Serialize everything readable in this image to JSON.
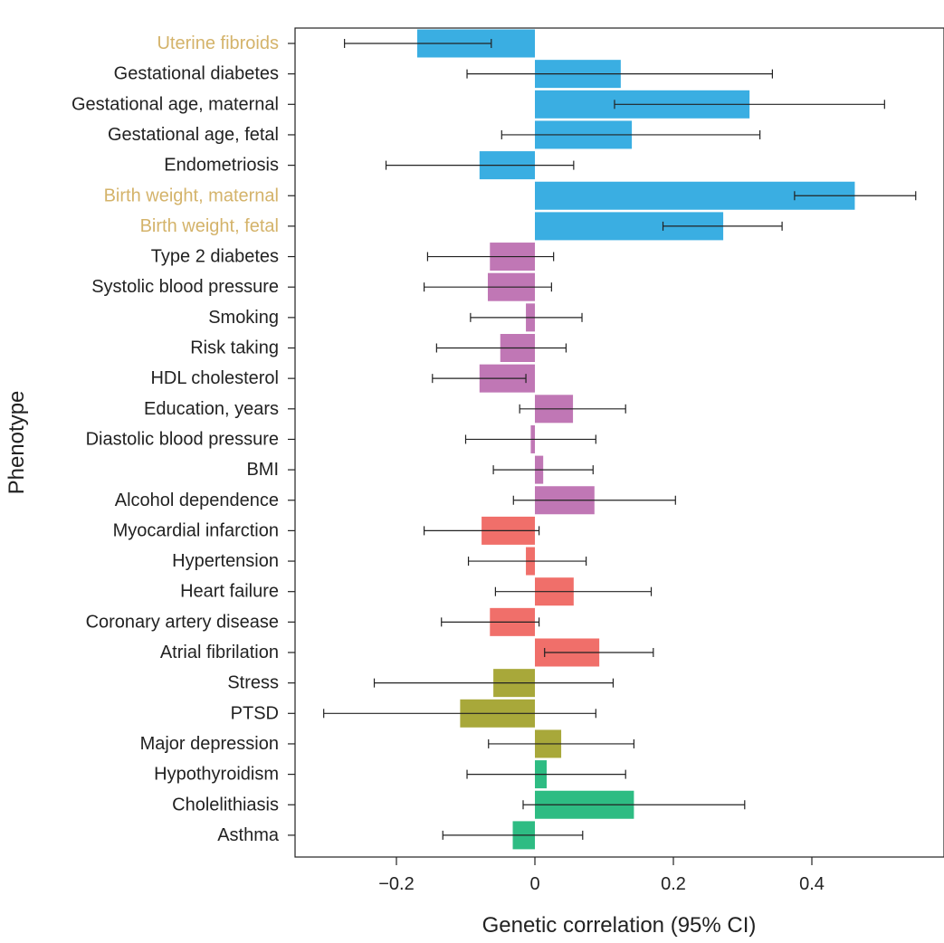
{
  "chart_data": {
    "type": "bar",
    "orientation": "horizontal",
    "xlabel": "Genetic correlation (95% CI)",
    "ylabel": "Phenotype",
    "xlim": [
      -0.35,
      0.58
    ],
    "x_ticks": [
      -0.2,
      0,
      0.2,
      0.4
    ],
    "x_tick_labels": [
      "−0.2",
      "0",
      "0.2",
      "0.4"
    ],
    "grid": false,
    "legend": "none",
    "highlight_label_color": "#d4b36a",
    "default_label_color": "#222222",
    "group_colors": {
      "reproductive": "#3aaee2",
      "metabolic_behavioral": "#c077b5",
      "cardiovascular": "#f06f6a",
      "psychiatric": "#a8a83a",
      "other": "#2ebc83"
    },
    "rows": [
      {
        "label": "Uterine fibroids",
        "value": -0.17,
        "ci": [
          -0.275,
          -0.063
        ],
        "group": "reproductive",
        "highlight": true
      },
      {
        "label": "Gestational diabetes",
        "value": 0.124,
        "ci": [
          -0.098,
          0.343
        ],
        "group": "reproductive",
        "highlight": false
      },
      {
        "label": "Gestational age, maternal",
        "value": 0.31,
        "ci": [
          0.115,
          0.505
        ],
        "group": "reproductive",
        "highlight": false
      },
      {
        "label": "Gestational age, fetal",
        "value": 0.14,
        "ci": [
          -0.048,
          0.325
        ],
        "group": "reproductive",
        "highlight": false
      },
      {
        "label": "Endometriosis",
        "value": -0.08,
        "ci": [
          -0.215,
          0.056
        ],
        "group": "reproductive",
        "highlight": false
      },
      {
        "label": "Birth weight, maternal",
        "value": 0.462,
        "ci": [
          0.375,
          0.55
        ],
        "group": "reproductive",
        "highlight": true
      },
      {
        "label": "Birth weight, fetal",
        "value": 0.272,
        "ci": [
          0.185,
          0.357
        ],
        "group": "reproductive",
        "highlight": true
      },
      {
        "label": "Type 2 diabetes",
        "value": -0.065,
        "ci": [
          -0.155,
          0.027
        ],
        "group": "metabolic_behavioral",
        "highlight": false
      },
      {
        "label": "Systolic blood pressure",
        "value": -0.068,
        "ci": [
          -0.16,
          0.024
        ],
        "group": "metabolic_behavioral",
        "highlight": false
      },
      {
        "label": "Smoking",
        "value": -0.013,
        "ci": [
          -0.093,
          0.068
        ],
        "group": "metabolic_behavioral",
        "highlight": false
      },
      {
        "label": "Risk taking",
        "value": -0.05,
        "ci": [
          -0.142,
          0.045
        ],
        "group": "metabolic_behavioral",
        "highlight": false
      },
      {
        "label": "HDL cholesterol",
        "value": -0.08,
        "ci": [
          -0.148,
          -0.013
        ],
        "group": "metabolic_behavioral",
        "highlight": false
      },
      {
        "label": "Education, years",
        "value": 0.055,
        "ci": [
          -0.022,
          0.131
        ],
        "group": "metabolic_behavioral",
        "highlight": false
      },
      {
        "label": "Diastolic blood pressure",
        "value": -0.006,
        "ci": [
          -0.1,
          0.088
        ],
        "group": "metabolic_behavioral",
        "highlight": false
      },
      {
        "label": "BMI",
        "value": 0.012,
        "ci": [
          -0.06,
          0.084
        ],
        "group": "metabolic_behavioral",
        "highlight": false
      },
      {
        "label": "Alcohol dependence",
        "value": 0.086,
        "ci": [
          -0.031,
          0.203
        ],
        "group": "metabolic_behavioral",
        "highlight": false
      },
      {
        "label": "Myocardial infarction",
        "value": -0.077,
        "ci": [
          -0.16,
          0.006
        ],
        "group": "cardiovascular",
        "highlight": false
      },
      {
        "label": "Hypertension",
        "value": -0.013,
        "ci": [
          -0.096,
          0.074
        ],
        "group": "cardiovascular",
        "highlight": false
      },
      {
        "label": "Heart failure",
        "value": 0.056,
        "ci": [
          -0.057,
          0.168
        ],
        "group": "cardiovascular",
        "highlight": false
      },
      {
        "label": "Coronary artery disease",
        "value": -0.065,
        "ci": [
          -0.135,
          0.006
        ],
        "group": "cardiovascular",
        "highlight": false
      },
      {
        "label": "Atrial fibrilation",
        "value": 0.093,
        "ci": [
          0.014,
          0.171
        ],
        "group": "cardiovascular",
        "highlight": false
      },
      {
        "label": "Stress",
        "value": -0.06,
        "ci": [
          -0.232,
          0.113
        ],
        "group": "psychiatric",
        "highlight": false
      },
      {
        "label": "PTSD",
        "value": -0.108,
        "ci": [
          -0.305,
          0.088
        ],
        "group": "psychiatric",
        "highlight": false
      },
      {
        "label": "Major depression",
        "value": 0.038,
        "ci": [
          -0.067,
          0.143
        ],
        "group": "psychiatric",
        "highlight": false
      },
      {
        "label": "Hypothyroidism",
        "value": 0.017,
        "ci": [
          -0.098,
          0.131
        ],
        "group": "other",
        "highlight": false
      },
      {
        "label": "Cholelithiasis",
        "value": 0.143,
        "ci": [
          -0.017,
          0.303
        ],
        "group": "other",
        "highlight": false
      },
      {
        "label": "Asthma",
        "value": -0.032,
        "ci": [
          -0.133,
          0.069
        ],
        "group": "other",
        "highlight": false
      }
    ]
  }
}
